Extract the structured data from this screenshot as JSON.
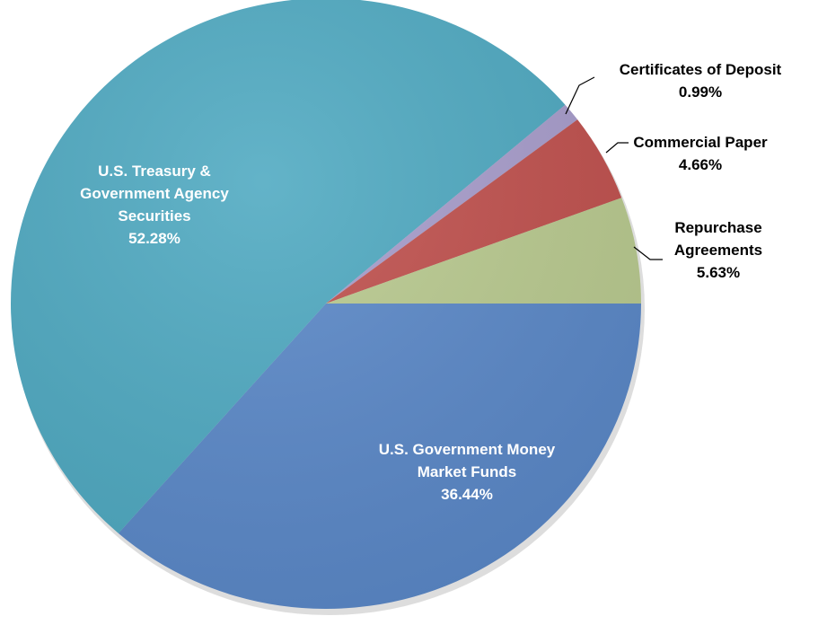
{
  "chart_data": {
    "type": "pie",
    "categories": [
      "U.S. Government Money Market Funds",
      "U.S. Treasury & Government Agency Securities",
      "Certificates of Deposit",
      "Commercial Paper",
      "Repurchase Agreements"
    ],
    "values": [
      36.44,
      52.28,
      0.99,
      4.66,
      5.63
    ],
    "value_labels": [
      "36.44%",
      "52.28%",
      "0.99%",
      "4.66%",
      "5.63%"
    ],
    "colors": [
      "#5a88c8",
      "#4ea9c1",
      "#a79ccb",
      "#c0504d",
      "#b9ca8f"
    ]
  }
}
